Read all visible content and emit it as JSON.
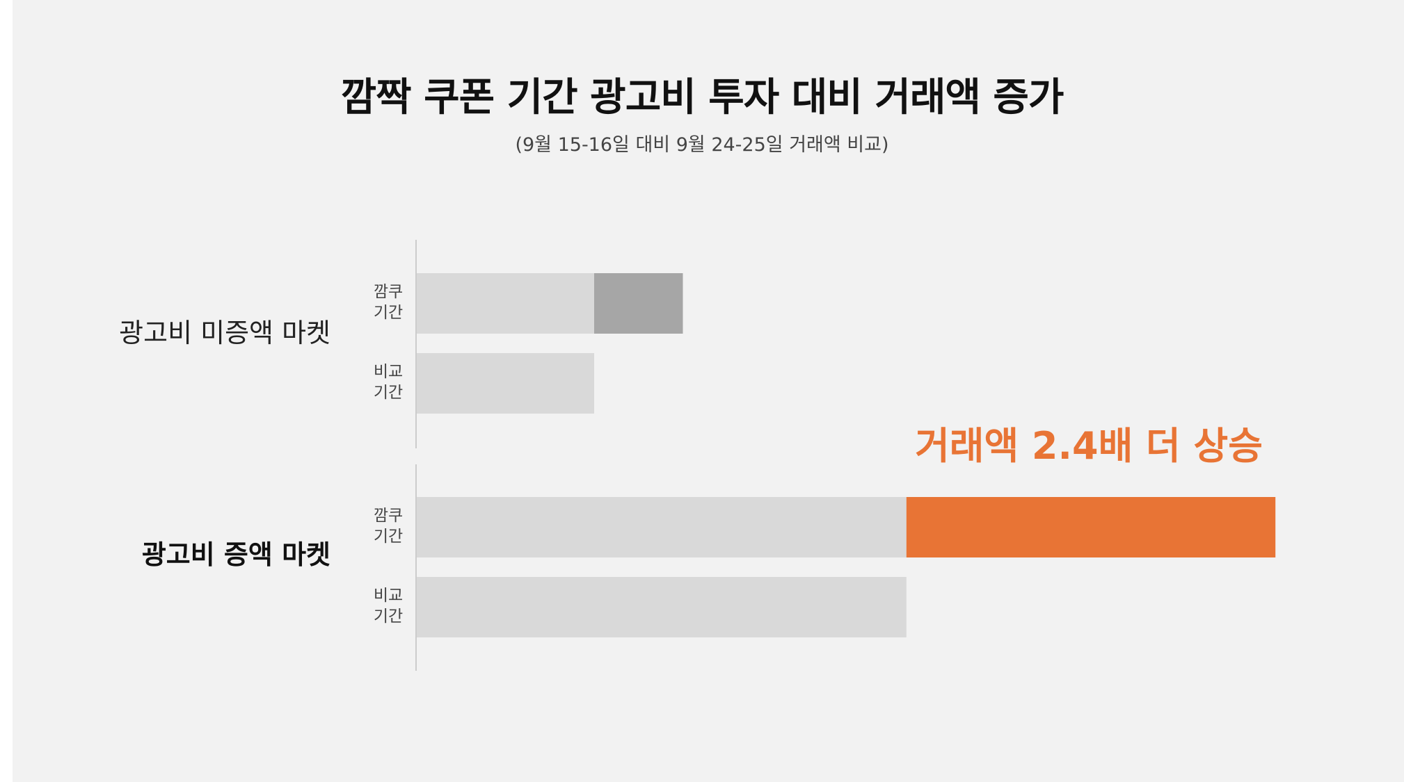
{
  "colors": {
    "background": "#f2f2f2",
    "base_bar": "#d9d9d9",
    "increase_muted": "#a6a6a6",
    "increase_highlight": "#e87435",
    "axis": "#bfbfbf"
  },
  "chart_data": {
    "type": "bar",
    "orientation": "horizontal",
    "stacked": true,
    "title": "깜짝 쿠폰 기간 광고비 투자 대비 거래액 증가",
    "subtitle": "(9월 15-16일 대비 9월 24-25일 거래액 비교)",
    "axis_values_shown": false,
    "value_unit": "relative",
    "groups": [
      {
        "label": "광고비 미증액 마켓",
        "emphasis": false,
        "rows": [
          {
            "label": [
              "깜쿠",
              "기간"
            ],
            "base": 1.0,
            "increase": 0.5,
            "increase_color": "#a6a6a6"
          },
          {
            "label": [
              "비교",
              "기간"
            ],
            "base": 1.0,
            "increase": 0
          }
        ]
      },
      {
        "label": "광고비 증액 마켓",
        "emphasis": true,
        "rows": [
          {
            "label": [
              "깜쿠",
              "기간"
            ],
            "base": 2.76,
            "increase": 2.08,
            "increase_color": "#e87435"
          },
          {
            "label": [
              "비교",
              "기간"
            ],
            "base": 2.76,
            "increase": 0
          }
        ]
      }
    ],
    "annotation": {
      "text": "거래액 2.4배 더 상승",
      "color": "#e87435"
    }
  }
}
